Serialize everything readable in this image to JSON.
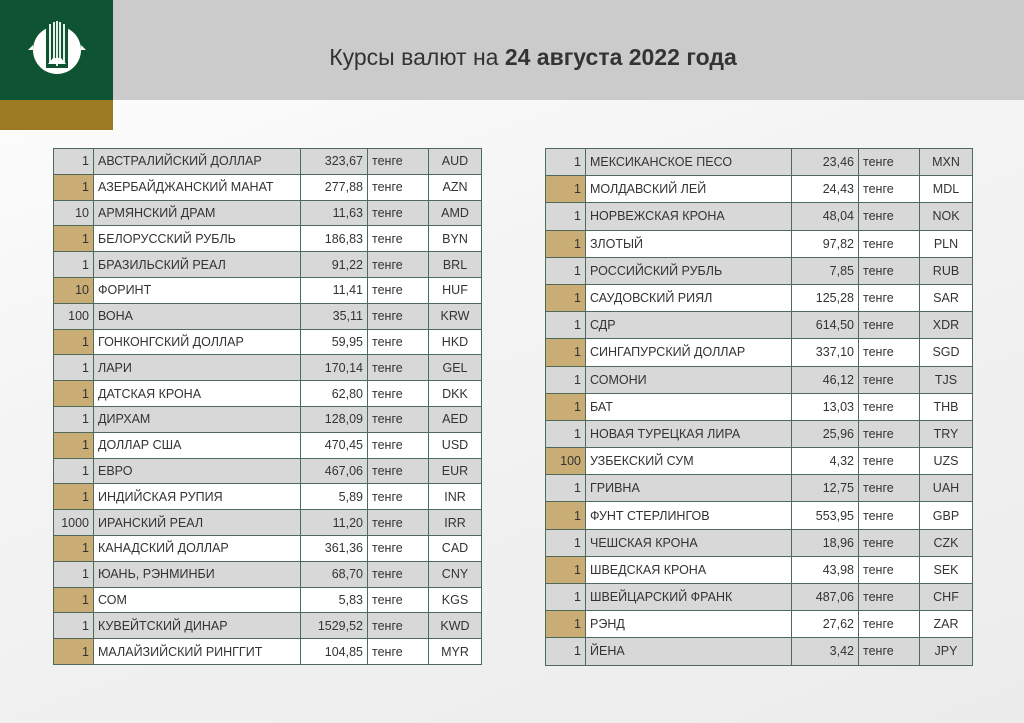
{
  "header": {
    "title_prefix": "Курсы валют на ",
    "title_date": "24 августа 2022 года",
    "colors": {
      "green": "#0e5433",
      "gold": "#9c7a22",
      "band": "#cbcbcb",
      "row_gold": "#c9ad74",
      "row_gray": "#d8d8d8"
    },
    "logo_icon": "national-bank-emblem"
  },
  "unit": "тенге",
  "left": [
    {
      "n": "1",
      "name": "АВСТРАЛИЙСКИЙ ДОЛЛАР",
      "rate": "323,67",
      "code": "AUD"
    },
    {
      "n": "1",
      "name": "АЗЕРБАЙДЖАНСКИЙ МАНАТ",
      "rate": "277,88",
      "code": "AZN"
    },
    {
      "n": "10",
      "name": "АРМЯНСКИЙ  ДРАМ",
      "rate": "11,63",
      "code": "AMD"
    },
    {
      "n": "1",
      "name": "БЕЛОРУССКИЙ РУБЛЬ",
      "rate": "186,83",
      "code": "BYN"
    },
    {
      "n": "1",
      "name": "БРАЗИЛЬСКИЙ РЕАЛ",
      "rate": "91,22",
      "code": "BRL"
    },
    {
      "n": "10",
      "name": "ФОРИНТ",
      "rate": "11,41",
      "code": "HUF"
    },
    {
      "n": "100",
      "name": "ВОНА",
      "rate": "35,11",
      "code": "KRW"
    },
    {
      "n": "1",
      "name": "ГОНКОНГСКИЙ ДОЛЛАР",
      "rate": "59,95",
      "code": "HKD"
    },
    {
      "n": "1",
      "name": "ЛАРИ",
      "rate": "170,14",
      "code": "GEL"
    },
    {
      "n": "1",
      "name": "ДАТСКАЯ КРОНА",
      "rate": "62,80",
      "code": "DKK"
    },
    {
      "n": "1",
      "name": "ДИРХАМ",
      "rate": "128,09",
      "code": "AED"
    },
    {
      "n": "1",
      "name": "ДОЛЛАР США",
      "rate": "470,45",
      "code": "USD"
    },
    {
      "n": "1",
      "name": "ЕВРО",
      "rate": "467,06",
      "code": "EUR"
    },
    {
      "n": "1",
      "name": "ИНДИЙСКАЯ РУПИЯ",
      "rate": "5,89",
      "code": "INR"
    },
    {
      "n": "1000",
      "name": "ИРАНСКИЙ РЕАЛ",
      "rate": "11,20",
      "code": "IRR"
    },
    {
      "n": "1",
      "name": "КАНАДСКИЙ ДОЛЛАР",
      "rate": "361,36",
      "code": "CAD"
    },
    {
      "n": "1",
      "name": "ЮАНЬ, РЭНМИНБИ",
      "rate": "68,70",
      "code": "CNY"
    },
    {
      "n": "1",
      "name": "СОМ",
      "rate": "5,83",
      "code": "KGS"
    },
    {
      "n": "1",
      "name": "КУВЕЙТСКИЙ ДИНАР",
      "rate": "1529,52",
      "code": "KWD"
    },
    {
      "n": "1",
      "name": "МАЛАЙЗИЙСКИЙ РИНГГИТ",
      "rate": "104,85",
      "code": "MYR"
    }
  ],
  "right": [
    {
      "n": "1",
      "name": "МЕКСИКАНСКОЕ ПЕСО",
      "rate": "23,46",
      "code": "MXN"
    },
    {
      "n": "1",
      "name": "МОЛДАВСКИЙ ЛЕЙ",
      "rate": "24,43",
      "code": "MDL"
    },
    {
      "n": "1",
      "name": "НОРВЕЖСКАЯ КРОНА",
      "rate": "48,04",
      "code": "NOK"
    },
    {
      "n": "1",
      "name": "ЗЛОТЫЙ",
      "rate": "97,82",
      "code": "PLN"
    },
    {
      "n": "1",
      "name": "РОССИЙСКИЙ РУБЛЬ",
      "rate": "7,85",
      "code": "RUB"
    },
    {
      "n": "1",
      "name": "САУДОВСКИЙ РИЯЛ",
      "rate": "125,28",
      "code": "SAR"
    },
    {
      "n": "1",
      "name": "СДР",
      "rate": "614,50",
      "code": "XDR"
    },
    {
      "n": "1",
      "name": "СИНГАПУРСКИЙ ДОЛЛАР",
      "rate": "337,10",
      "code": "SGD"
    },
    {
      "n": "1",
      "name": "СОМОНИ",
      "rate": "46,12",
      "code": "TJS"
    },
    {
      "n": "1",
      "name": "БАТ",
      "rate": "13,03",
      "code": "THB"
    },
    {
      "n": "1",
      "name": "НОВАЯ ТУРЕЦКАЯ ЛИРА",
      "rate": "25,96",
      "code": "TRY"
    },
    {
      "n": "100",
      "name": "УЗБЕКСКИЙ СУМ",
      "rate": "4,32",
      "code": "UZS"
    },
    {
      "n": "1",
      "name": "ГРИВНА",
      "rate": "12,75",
      "code": "UAH"
    },
    {
      "n": "1",
      "name": "ФУНТ СТЕРЛИНГОВ",
      "rate": "553,95",
      "code": "GBP"
    },
    {
      "n": "1",
      "name": "ЧЕШСКАЯ КРОНА",
      "rate": "18,96",
      "code": "CZK"
    },
    {
      "n": "1",
      "name": "ШВЕДСКАЯ КРОНА",
      "rate": "43,98",
      "code": "SEK"
    },
    {
      "n": "1",
      "name": "ШВЕЙЦАРСКИЙ ФРАНК",
      "rate": "487,06",
      "code": "CHF"
    },
    {
      "n": "1",
      "name": "РЭНД",
      "rate": "27,62",
      "code": "ZAR"
    },
    {
      "n": "1",
      "name": "ЙЕНА",
      "rate": "3,42",
      "code": "JPY"
    }
  ]
}
